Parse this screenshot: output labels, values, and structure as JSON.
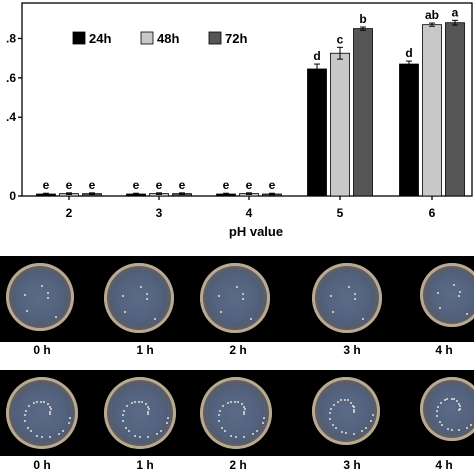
{
  "chart_data": {
    "type": "bar",
    "categories": [
      "2",
      "3",
      "4",
      "5",
      "6"
    ],
    "series": [
      {
        "name": "24h",
        "color": "#000000",
        "values": [
          0.01,
          0.01,
          0.01,
          0.645,
          0.67
        ],
        "errors": [
          0.004,
          0.004,
          0.004,
          0.025,
          0.015
        ],
        "labels": [
          "e",
          "e",
          "e",
          "d",
          "d"
        ]
      },
      {
        "name": "48h",
        "color": "#c8c8c8",
        "values": [
          0.012,
          0.012,
          0.012,
          0.725,
          0.87
        ],
        "errors": [
          0.004,
          0.004,
          0.004,
          0.03,
          0.008
        ],
        "labels": [
          "e",
          "e",
          "e",
          "c",
          "ab"
        ]
      },
      {
        "name": "72h",
        "color": "#555555",
        "values": [
          0.012,
          0.012,
          0.01,
          0.85,
          0.88
        ],
        "errors": [
          0.004,
          0.004,
          0.004,
          0.008,
          0.012
        ],
        "labels": [
          "e",
          "e",
          "e",
          "b",
          "a"
        ]
      }
    ],
    "ytick_labels": [
      ".4",
      ".6",
      ".8",
      "0"
    ],
    "ytick_values": [
      0.4,
      0.6,
      0.8,
      0.0
    ],
    "xlabel": "pH value",
    "ylim": [
      0,
      0.98
    ],
    "legend_position": "top-left",
    "grid": false
  },
  "photo_rows": [
    {
      "labels": [
        "0 h",
        "1 h",
        "2 h",
        "3 h",
        "4 h"
      ]
    },
    {
      "labels": [
        "0 h",
        "1 h",
        "2 h",
        "3 h",
        "4 h"
      ]
    }
  ]
}
